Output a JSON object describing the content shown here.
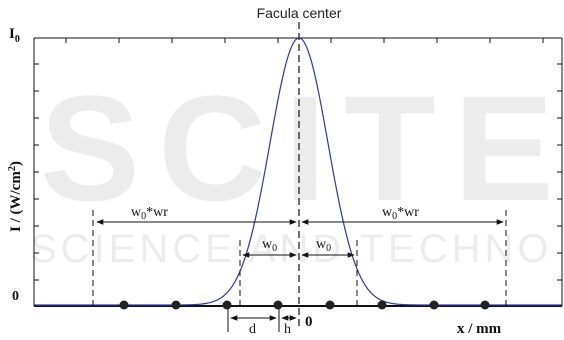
{
  "labels": {
    "top": "Facula center",
    "y_top": "I",
    "y_top_sub": "0",
    "y_zero": "0",
    "y_axis": "I / (W/cm",
    "y_axis_sup": "2",
    "y_axis_close": ")",
    "x_axis": "x / mm",
    "x_zero": "0",
    "w0": "w",
    "w0_sub": "0",
    "w0wr_suffix": "*wr",
    "d": "d",
    "h": "h"
  },
  "watermark": {
    "big": "SCITE",
    "small": "SCIENCE AND TECHNO"
  },
  "colors": {
    "curve": "#2b3aa0",
    "ink": "#111111",
    "watermark": "#e8e8e8"
  }
}
